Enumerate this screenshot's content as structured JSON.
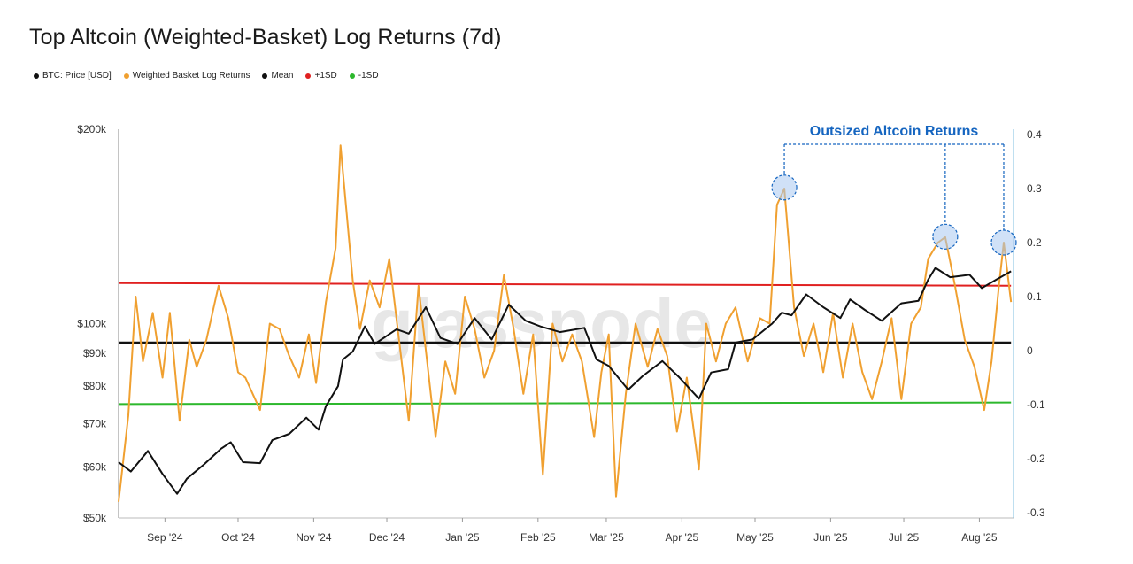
{
  "chart_data": {
    "type": "line",
    "title": "Top Altcoin (Weighted-Basket) Log Returns (7d)",
    "watermark": "glassnode",
    "annotation": "Outsized Altcoin Returns",
    "x_labels": [
      "Sep '24",
      "Oct '24",
      "Nov '24",
      "Dec '24",
      "Jan '25",
      "Feb '25",
      "Mar '25",
      "Apr '25",
      "May '25",
      "Jun '25",
      "Jul '25",
      "Aug '25"
    ],
    "x_range": [
      "2024-08-13",
      "2025-08-15"
    ],
    "y_left": {
      "scale": "log",
      "ylim": [
        50000,
        200000
      ],
      "ticks": [
        50000,
        60000,
        70000,
        80000,
        90000,
        100000,
        200000
      ],
      "tick_labels": [
        "$50k",
        "$60k",
        "$70k",
        "$80k",
        "$90k",
        "$100k",
        "$200k"
      ]
    },
    "y_right": {
      "ylim": [
        -0.3,
        0.4
      ],
      "ticks": [
        -0.3,
        -0.2,
        -0.1,
        0,
        0.1,
        0.2,
        0.3,
        0.4
      ],
      "tick_labels": [
        "-0.3",
        "-0.2",
        "-0.1",
        "0",
        "0.1",
        "0.2",
        "0.3",
        "0.4"
      ]
    },
    "legend_position": "top-left",
    "series": [
      {
        "name": "BTC: Price [USD]",
        "color": "#111111",
        "axis": "left",
        "points": [
          [
            "2024-08-13",
            61000
          ],
          [
            "2024-08-18",
            59000
          ],
          [
            "2024-08-25",
            63500
          ],
          [
            "2024-08-31",
            58500
          ],
          [
            "2024-09-06",
            54500
          ],
          [
            "2024-09-10",
            57500
          ],
          [
            "2024-09-17",
            60500
          ],
          [
            "2024-09-24",
            64000
          ],
          [
            "2024-09-28",
            65500
          ],
          [
            "2024-10-03",
            61000
          ],
          [
            "2024-10-10",
            60800
          ],
          [
            "2024-10-15",
            66000
          ],
          [
            "2024-10-22",
            67500
          ],
          [
            "2024-10-29",
            71500
          ],
          [
            "2024-11-03",
            68500
          ],
          [
            "2024-11-06",
            74500
          ],
          [
            "2024-11-11",
            80000
          ],
          [
            "2024-11-13",
            88000
          ],
          [
            "2024-11-17",
            90500
          ],
          [
            "2024-11-22",
            99000
          ],
          [
            "2024-11-26",
            93000
          ],
          [
            "2024-12-05",
            98000
          ],
          [
            "2024-12-10",
            96500
          ],
          [
            "2024-12-17",
            106000
          ],
          [
            "2024-12-23",
            95000
          ],
          [
            "2024-12-30",
            93000
          ],
          [
            "2025-01-06",
            102000
          ],
          [
            "2025-01-13",
            94500
          ],
          [
            "2025-01-20",
            107000
          ],
          [
            "2025-01-27",
            101000
          ],
          [
            "2025-02-02",
            99000
          ],
          [
            "2025-02-10",
            97000
          ],
          [
            "2025-02-20",
            98500
          ],
          [
            "2025-02-25",
            88000
          ],
          [
            "2025-03-02",
            86000
          ],
          [
            "2025-03-10",
            79000
          ],
          [
            "2025-03-16",
            83000
          ],
          [
            "2025-03-24",
            87500
          ],
          [
            "2025-03-31",
            82500
          ],
          [
            "2025-04-08",
            76500
          ],
          [
            "2025-04-13",
            84000
          ],
          [
            "2025-04-20",
            85000
          ],
          [
            "2025-04-23",
            93500
          ],
          [
            "2025-04-30",
            94500
          ],
          [
            "2025-05-08",
            100000
          ],
          [
            "2025-05-12",
            104000
          ],
          [
            "2025-05-16",
            103000
          ],
          [
            "2025-05-22",
            111000
          ],
          [
            "2025-05-29",
            106000
          ],
          [
            "2025-06-05",
            102000
          ],
          [
            "2025-06-09",
            109000
          ],
          [
            "2025-06-15",
            105000
          ],
          [
            "2025-06-22",
            101000
          ],
          [
            "2025-06-30",
            107500
          ],
          [
            "2025-07-07",
            108500
          ],
          [
            "2025-07-11",
            117000
          ],
          [
            "2025-07-14",
            122000
          ],
          [
            "2025-07-20",
            118000
          ],
          [
            "2025-07-28",
            119000
          ],
          [
            "2025-08-02",
            113500
          ],
          [
            "2025-08-08",
            117000
          ],
          [
            "2025-08-14",
            120500
          ]
        ]
      },
      {
        "name": "Weighted Basket Log Returns",
        "color": "#f0a030",
        "axis": "right",
        "points": [
          [
            "2024-08-13",
            -0.28
          ],
          [
            "2024-08-17",
            -0.12
          ],
          [
            "2024-08-20",
            0.1
          ],
          [
            "2024-08-23",
            -0.02
          ],
          [
            "2024-08-27",
            0.07
          ],
          [
            "2024-08-31",
            -0.05
          ],
          [
            "2024-09-03",
            0.07
          ],
          [
            "2024-09-07",
            -0.13
          ],
          [
            "2024-09-11",
            0.02
          ],
          [
            "2024-09-14",
            -0.03
          ],
          [
            "2024-09-18",
            0.02
          ],
          [
            "2024-09-23",
            0.12
          ],
          [
            "2024-09-27",
            0.06
          ],
          [
            "2024-10-01",
            -0.04
          ],
          [
            "2024-10-04",
            -0.05
          ],
          [
            "2024-10-07",
            -0.08
          ],
          [
            "2024-10-10",
            -0.11
          ],
          [
            "2024-10-14",
            0.05
          ],
          [
            "2024-10-18",
            0.04
          ],
          [
            "2024-10-22",
            -0.01
          ],
          [
            "2024-10-26",
            -0.05
          ],
          [
            "2024-10-30",
            0.03
          ],
          [
            "2024-11-02",
            -0.06
          ],
          [
            "2024-11-06",
            0.09
          ],
          [
            "2024-11-10",
            0.19
          ],
          [
            "2024-11-12",
            0.38
          ],
          [
            "2024-11-17",
            0.13
          ],
          [
            "2024-11-20",
            0.04
          ],
          [
            "2024-11-24",
            0.13
          ],
          [
            "2024-11-28",
            0.08
          ],
          [
            "2024-12-02",
            0.17
          ],
          [
            "2024-12-06",
            0.02
          ],
          [
            "2024-12-10",
            -0.13
          ],
          [
            "2024-12-14",
            0.12
          ],
          [
            "2024-12-18",
            -0.04
          ],
          [
            "2024-12-21",
            -0.16
          ],
          [
            "2024-12-25",
            -0.02
          ],
          [
            "2024-12-29",
            -0.08
          ],
          [
            "2025-01-02",
            0.1
          ],
          [
            "2025-01-06",
            0.04
          ],
          [
            "2025-01-10",
            -0.05
          ],
          [
            "2025-01-14",
            0.0
          ],
          [
            "2025-01-18",
            0.14
          ],
          [
            "2025-01-22",
            0.04
          ],
          [
            "2025-01-26",
            -0.08
          ],
          [
            "2025-01-30",
            0.03
          ],
          [
            "2025-02-03",
            -0.23
          ],
          [
            "2025-02-07",
            0.05
          ],
          [
            "2025-02-11",
            -0.02
          ],
          [
            "2025-02-15",
            0.03
          ],
          [
            "2025-02-19",
            -0.02
          ],
          [
            "2025-02-24",
            -0.16
          ],
          [
            "2025-02-27",
            -0.04
          ],
          [
            "2025-03-02",
            0.03
          ],
          [
            "2025-03-05",
            -0.27
          ],
          [
            "2025-03-09",
            -0.08
          ],
          [
            "2025-03-13",
            0.05
          ],
          [
            "2025-03-18",
            -0.03
          ],
          [
            "2025-03-22",
            0.04
          ],
          [
            "2025-03-26",
            -0.01
          ],
          [
            "2025-03-30",
            -0.15
          ],
          [
            "2025-04-03",
            -0.05
          ],
          [
            "2025-04-08",
            -0.22
          ],
          [
            "2025-04-11",
            0.05
          ],
          [
            "2025-04-15",
            -0.02
          ],
          [
            "2025-04-19",
            0.05
          ],
          [
            "2025-04-23",
            0.08
          ],
          [
            "2025-04-28",
            -0.02
          ],
          [
            "2025-05-03",
            0.06
          ],
          [
            "2025-05-07",
            0.05
          ],
          [
            "2025-05-10",
            0.27
          ],
          [
            "2025-05-13",
            0.3
          ],
          [
            "2025-05-17",
            0.08
          ],
          [
            "2025-05-21",
            -0.01
          ],
          [
            "2025-05-25",
            0.05
          ],
          [
            "2025-05-29",
            -0.04
          ],
          [
            "2025-06-02",
            0.07
          ],
          [
            "2025-06-06",
            -0.05
          ],
          [
            "2025-06-10",
            0.05
          ],
          [
            "2025-06-14",
            -0.04
          ],
          [
            "2025-06-18",
            -0.09
          ],
          [
            "2025-06-22",
            -0.02
          ],
          [
            "2025-06-26",
            0.06
          ],
          [
            "2025-06-30",
            -0.09
          ],
          [
            "2025-07-04",
            0.05
          ],
          [
            "2025-07-08",
            0.08
          ],
          [
            "2025-07-11",
            0.17
          ],
          [
            "2025-07-15",
            0.2
          ],
          [
            "2025-07-18",
            0.21
          ],
          [
            "2025-07-22",
            0.12
          ],
          [
            "2025-07-26",
            0.02
          ],
          [
            "2025-07-30",
            -0.03
          ],
          [
            "2025-08-03",
            -0.11
          ],
          [
            "2025-08-06",
            -0.02
          ],
          [
            "2025-08-09",
            0.12
          ],
          [
            "2025-08-11",
            0.2
          ],
          [
            "2025-08-14",
            0.09
          ]
        ]
      },
      {
        "name": "Mean",
        "color": "#111111",
        "axis": "right",
        "points": [
          [
            "2024-08-13",
            0.015
          ],
          [
            "2025-08-14",
            0.015
          ]
        ]
      },
      {
        "name": "+1SD",
        "color": "#e02020",
        "axis": "right",
        "points": [
          [
            "2024-08-13",
            0.125
          ],
          [
            "2025-08-14",
            0.12
          ]
        ]
      },
      {
        "name": "-1SD",
        "color": "#2db82d",
        "axis": "right",
        "points": [
          [
            "2024-08-13",
            -0.099
          ],
          [
            "2025-08-14",
            -0.096
          ]
        ]
      }
    ],
    "highlights": [
      {
        "date": "2025-05-13",
        "value": 0.302
      },
      {
        "date": "2025-07-18",
        "value": 0.211
      },
      {
        "date": "2025-08-11",
        "value": 0.2
      }
    ]
  }
}
